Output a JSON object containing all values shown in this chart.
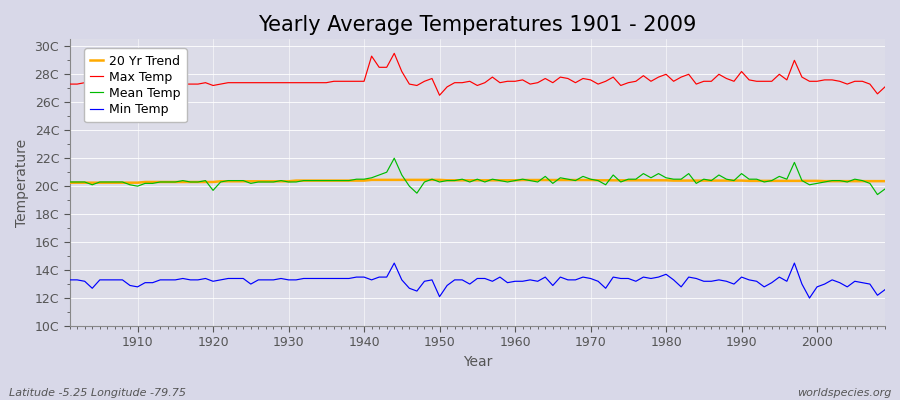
{
  "title": "Yearly Average Temperatures 1901 - 2009",
  "xlabel": "Year",
  "ylabel": "Temperature",
  "footer_left": "Latitude -5.25 Longitude -79.75",
  "footer_right": "worldspecies.org",
  "background_color": "#d8d8e8",
  "plot_bg_color": "#dcdce8",
  "ylim": [
    10,
    30.5
  ],
  "xlim": [
    1901,
    2009
  ],
  "yticks": [
    10,
    12,
    14,
    16,
    18,
    20,
    22,
    24,
    26,
    28,
    30
  ],
  "ytick_labels": [
    "10C",
    "12C",
    "14C",
    "16C",
    "18C",
    "20C",
    "22C",
    "24C",
    "26C",
    "28C",
    "30C"
  ],
  "years": [
    1901,
    1902,
    1903,
    1904,
    1905,
    1906,
    1907,
    1908,
    1909,
    1910,
    1911,
    1912,
    1913,
    1914,
    1915,
    1916,
    1917,
    1918,
    1919,
    1920,
    1921,
    1922,
    1923,
    1924,
    1925,
    1926,
    1927,
    1928,
    1929,
    1930,
    1931,
    1932,
    1933,
    1934,
    1935,
    1936,
    1937,
    1938,
    1939,
    1940,
    1941,
    1942,
    1943,
    1944,
    1945,
    1946,
    1947,
    1948,
    1949,
    1950,
    1951,
    1952,
    1953,
    1954,
    1955,
    1956,
    1957,
    1958,
    1959,
    1960,
    1961,
    1962,
    1963,
    1964,
    1965,
    1966,
    1967,
    1968,
    1969,
    1970,
    1971,
    1972,
    1973,
    1974,
    1975,
    1976,
    1977,
    1978,
    1979,
    1980,
    1981,
    1982,
    1983,
    1984,
    1985,
    1986,
    1987,
    1988,
    1989,
    1990,
    1991,
    1992,
    1993,
    1994,
    1995,
    1996,
    1997,
    1998,
    1999,
    2000,
    2001,
    2002,
    2003,
    2004,
    2005,
    2006,
    2007,
    2008,
    2009
  ],
  "max_temp": [
    27.3,
    27.3,
    27.4,
    27.5,
    27.3,
    27.3,
    27.4,
    27.4,
    27.3,
    27.2,
    27.3,
    27.3,
    27.3,
    27.3,
    27.3,
    27.3,
    27.3,
    27.3,
    27.4,
    27.2,
    27.3,
    27.4,
    27.4,
    27.4,
    27.4,
    27.4,
    27.4,
    27.4,
    27.4,
    27.4,
    27.4,
    27.4,
    27.4,
    27.4,
    27.4,
    27.5,
    27.5,
    27.5,
    27.5,
    27.5,
    29.3,
    28.5,
    28.5,
    29.5,
    28.2,
    27.3,
    27.2,
    27.5,
    27.7,
    26.5,
    27.1,
    27.4,
    27.4,
    27.5,
    27.2,
    27.4,
    27.8,
    27.4,
    27.5,
    27.5,
    27.6,
    27.3,
    27.4,
    27.7,
    27.4,
    27.8,
    27.7,
    27.4,
    27.7,
    27.6,
    27.3,
    27.5,
    27.8,
    27.2,
    27.4,
    27.5,
    27.9,
    27.5,
    27.8,
    28.0,
    27.5,
    27.8,
    28.0,
    27.3,
    27.5,
    27.5,
    28.0,
    27.7,
    27.5,
    28.2,
    27.6,
    27.5,
    27.5,
    27.5,
    28.0,
    27.6,
    29.0,
    27.8,
    27.5,
    27.5,
    27.6,
    27.6,
    27.5,
    27.3,
    27.5,
    27.5,
    27.3,
    26.6,
    27.1
  ],
  "mean_temp": [
    20.3,
    20.3,
    20.3,
    20.1,
    20.3,
    20.3,
    20.3,
    20.3,
    20.1,
    20.0,
    20.2,
    20.2,
    20.3,
    20.3,
    20.3,
    20.4,
    20.3,
    20.3,
    20.4,
    19.7,
    20.3,
    20.4,
    20.4,
    20.4,
    20.2,
    20.3,
    20.3,
    20.3,
    20.4,
    20.3,
    20.3,
    20.4,
    20.4,
    20.4,
    20.4,
    20.4,
    20.4,
    20.4,
    20.5,
    20.5,
    20.6,
    20.8,
    21.0,
    22.0,
    20.8,
    20.0,
    19.5,
    20.3,
    20.5,
    20.3,
    20.4,
    20.4,
    20.5,
    20.3,
    20.5,
    20.3,
    20.5,
    20.4,
    20.3,
    20.4,
    20.5,
    20.4,
    20.3,
    20.7,
    20.2,
    20.6,
    20.5,
    20.4,
    20.7,
    20.5,
    20.4,
    20.1,
    20.8,
    20.3,
    20.5,
    20.5,
    20.9,
    20.6,
    20.9,
    20.6,
    20.5,
    20.5,
    20.9,
    20.2,
    20.5,
    20.4,
    20.8,
    20.5,
    20.4,
    20.9,
    20.5,
    20.5,
    20.3,
    20.4,
    20.7,
    20.5,
    21.7,
    20.4,
    20.1,
    20.2,
    20.3,
    20.4,
    20.4,
    20.3,
    20.5,
    20.4,
    20.2,
    19.4,
    19.8
  ],
  "min_temp": [
    13.3,
    13.3,
    13.2,
    12.7,
    13.3,
    13.3,
    13.3,
    13.3,
    12.9,
    12.8,
    13.1,
    13.1,
    13.3,
    13.3,
    13.3,
    13.4,
    13.3,
    13.3,
    13.4,
    13.2,
    13.3,
    13.4,
    13.4,
    13.4,
    13.0,
    13.3,
    13.3,
    13.3,
    13.4,
    13.3,
    13.3,
    13.4,
    13.4,
    13.4,
    13.4,
    13.4,
    13.4,
    13.4,
    13.5,
    13.5,
    13.3,
    13.5,
    13.5,
    14.5,
    13.3,
    12.7,
    12.5,
    13.2,
    13.3,
    12.1,
    12.9,
    13.3,
    13.3,
    13.0,
    13.4,
    13.4,
    13.2,
    13.5,
    13.1,
    13.2,
    13.2,
    13.3,
    13.2,
    13.5,
    12.9,
    13.5,
    13.3,
    13.3,
    13.5,
    13.4,
    13.2,
    12.7,
    13.5,
    13.4,
    13.4,
    13.2,
    13.5,
    13.4,
    13.5,
    13.7,
    13.3,
    12.8,
    13.5,
    13.4,
    13.2,
    13.2,
    13.3,
    13.2,
    13.0,
    13.5,
    13.3,
    13.2,
    12.8,
    13.1,
    13.5,
    13.2,
    14.5,
    13.0,
    12.0,
    12.8,
    13.0,
    13.3,
    13.1,
    12.8,
    13.2,
    13.1,
    13.0,
    12.2,
    12.6
  ],
  "trend": [
    20.25,
    20.25,
    20.25,
    20.25,
    20.25,
    20.25,
    20.25,
    20.25,
    20.25,
    20.25,
    20.3,
    20.3,
    20.3,
    20.3,
    20.3,
    20.3,
    20.3,
    20.3,
    20.3,
    20.3,
    20.35,
    20.35,
    20.35,
    20.35,
    20.35,
    20.35,
    20.35,
    20.35,
    20.35,
    20.35,
    20.4,
    20.4,
    20.4,
    20.4,
    20.4,
    20.4,
    20.4,
    20.4,
    20.4,
    20.4,
    20.45,
    20.45,
    20.45,
    20.45,
    20.45,
    20.45,
    20.45,
    20.45,
    20.45,
    20.45,
    20.42,
    20.42,
    20.42,
    20.42,
    20.42,
    20.42,
    20.42,
    20.42,
    20.42,
    20.42,
    20.44,
    20.44,
    20.44,
    20.44,
    20.44,
    20.44,
    20.44,
    20.44,
    20.44,
    20.44,
    20.42,
    20.42,
    20.42,
    20.42,
    20.42,
    20.42,
    20.42,
    20.42,
    20.42,
    20.42,
    20.4,
    20.4,
    20.4,
    20.4,
    20.4,
    20.4,
    20.4,
    20.4,
    20.4,
    20.4,
    20.38,
    20.38,
    20.38,
    20.38,
    20.38,
    20.38,
    20.38,
    20.38,
    20.38,
    20.38,
    20.36,
    20.36,
    20.36,
    20.36,
    20.36,
    20.36,
    20.36,
    20.36,
    20.36
  ],
  "max_color": "#ff0000",
  "mean_color": "#00bb00",
  "min_color": "#0000ff",
  "trend_color": "#ffaa00",
  "grid_color": "#ffffff",
  "tick_color": "#555555",
  "title_fontsize": 15,
  "axis_label_fontsize": 10,
  "tick_fontsize": 9,
  "legend_fontsize": 9,
  "footer_fontsize": 8
}
